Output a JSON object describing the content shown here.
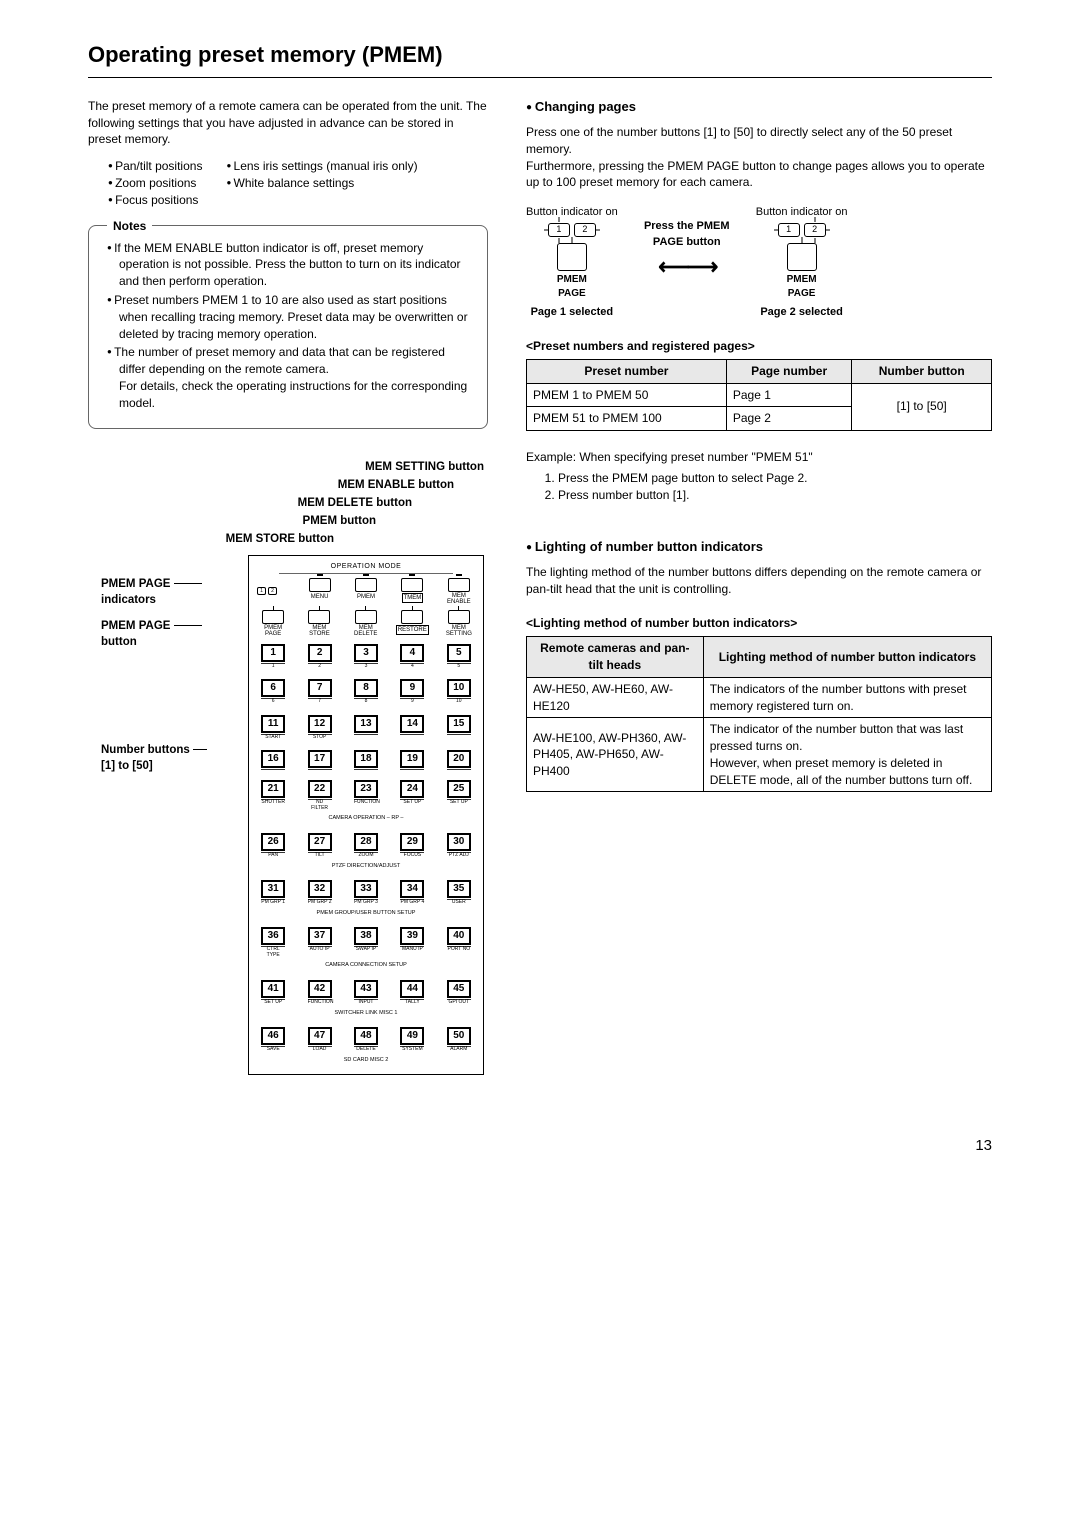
{
  "title": "Operating preset memory (PMEM)",
  "intro": "The preset memory of a remote camera can be operated from the unit. The following settings that you have adjusted in advance can be stored in preset memory.",
  "settings_col1": [
    "Pan/tilt positions",
    "Zoom positions",
    "Focus positions"
  ],
  "settings_col2": [
    "Lens iris settings (manual iris only)",
    "White balance settings"
  ],
  "notes_title": "Notes",
  "notes": [
    "If the MEM ENABLE button indicator is off, preset memory operation is not possible. Press the button to turn on its indicator and then perform operation.",
    "Preset numbers PMEM 1 to 10 are also used as start positions when recalling tracing memory. Preset data may be overwritten or deleted by tracing memory operation.",
    "The number of preset memory and data that can be registered differ depending on the remote camera.\nFor details, check the operating instructions for the corresponding model."
  ],
  "callouts": {
    "c1": "MEM SETTING button",
    "c2": "MEM ENABLE button",
    "c3": "MEM DELETE button",
    "c4": "PMEM button",
    "c5": "MEM STORE button"
  },
  "side_labels": {
    "s1_a": "PMEM PAGE",
    "s1_b": "indicators",
    "s2_a": "PMEM PAGE",
    "s2_b": "button",
    "s3_a": "Number buttons",
    "s3_b": "[1] to [50]"
  },
  "panel": {
    "op": "OPERATION MODE",
    "mode": [
      {
        "lbl": "MENU"
      },
      {
        "lbl": "PMEM"
      },
      {
        "lbl": "TMEM",
        "box": true
      },
      {
        "lbl": "MEM\nENABLE"
      }
    ],
    "ctrl": [
      {
        "lbl": "PMEM\nPAGE"
      },
      {
        "lbl": "MEM\nSTORE"
      },
      {
        "lbl": "MEM\nDELETE"
      },
      {
        "lbl": "RESTORE",
        "box": true
      },
      {
        "lbl": "MEM\nSETTING"
      }
    ],
    "ind": [
      "1",
      "2"
    ],
    "rows": [
      {
        "nums": [
          1,
          2,
          3,
          4,
          5
        ],
        "subs": [
          "1",
          "2",
          "3",
          "4",
          "5"
        ]
      },
      {
        "nums": [
          6,
          7,
          8,
          9,
          10
        ],
        "subs": [
          "6",
          "7",
          "8",
          "9",
          "10"
        ]
      },
      {
        "nums": [
          11,
          12,
          13,
          14,
          15
        ],
        "subs": [
          "START",
          "STOP",
          "",
          "",
          ""
        ]
      },
      {
        "nums": [
          16,
          17,
          18,
          19,
          20
        ],
        "subs": [
          "",
          "",
          "",
          "",
          ""
        ]
      },
      {
        "nums": [
          21,
          22,
          23,
          24,
          25
        ],
        "subs": [
          "SHUTTER",
          "ND FILTER",
          "FUNCTION",
          "SET UP",
          "SET UP"
        ],
        "group": "CAMERA OPERATION                    – RP –"
      },
      {
        "nums": [
          26,
          27,
          28,
          29,
          30
        ],
        "subs": [
          "PAN",
          "TILT",
          "ZOOM",
          "FOCUS",
          "PTZ ADJ"
        ],
        "group": "PTZF DIRECTION/ADJUST"
      },
      {
        "nums": [
          31,
          32,
          33,
          34,
          35
        ],
        "subs": [
          "PM GRP 1",
          "PM GRP 2",
          "PM GRP 3",
          "PM GRP 4",
          "USER"
        ],
        "group": "PMEM GROUP/USER BUTTON SETUP"
      },
      {
        "nums": [
          36,
          37,
          38,
          39,
          40
        ],
        "subs": [
          "CTRL TYPE",
          "AUTO IP",
          "SWAP IP",
          "MANU IP",
          "PORT NO"
        ],
        "group": "CAMERA CONNECTION SETUP"
      },
      {
        "nums": [
          41,
          42,
          43,
          44,
          45
        ],
        "subs": [
          "SET UP",
          "FUNCTION",
          "INPUT",
          "TALLY",
          "GPI OUT"
        ],
        "group": "SWITCHER LINK                    MISC 1"
      },
      {
        "nums": [
          46,
          47,
          48,
          49,
          50
        ],
        "subs": [
          "SAVE",
          "LOAD",
          "DELETE",
          "SYSTEM",
          "ALARM"
        ],
        "group": "SD CARD                              MISC 2"
      }
    ]
  },
  "right": {
    "h1": "Changing pages",
    "p1": "Press one of the number buttons [1] to [50] to directly select any of the 50 preset memory.\nFurthermore, pressing the PMEM PAGE button to change pages allows you to operate up to 100 preset memory for each camera.",
    "ind_on": "Button indicator on",
    "press": "Press the PMEM PAGE button",
    "pmem_page": "PMEM\nPAGE",
    "sel1": "Page 1 selected",
    "sel2": "Page 2 selected",
    "tbl1_title": "<Preset numbers and registered pages>",
    "tbl1": {
      "head": [
        "Preset number",
        "Page number",
        "Number button"
      ],
      "rows": [
        [
          "PMEM 1 to PMEM 50",
          "Page 1"
        ],
        [
          "PMEM 51 to PMEM 100",
          "Page 2"
        ]
      ],
      "merged": "[1] to [50]"
    },
    "example_lead": "Example: When specifying preset number \"PMEM 51\"",
    "example_steps": [
      "Press the PMEM page button to select Page 2.",
      "Press number button [1]."
    ],
    "h2": "Lighting of number button indicators",
    "p2": "The lighting method of the number buttons differs depending on the remote camera or pan-tilt head that the unit is controlling.",
    "tbl2_title": "<Lighting method of number button indicators>",
    "tbl2": {
      "head": [
        "Remote cameras and pan-tilt heads",
        "Lighting method of number button indicators"
      ],
      "rows": [
        [
          "AW-HE50, AW-HE60, AW-HE120",
          "The indicators of the number buttons with preset memory registered turn on."
        ],
        [
          "AW-HE100, AW-PH360, AW-PH405, AW-PH650, AW-PH400",
          "The indicator of the number button that was last pressed turns on.\nHowever, when preset memory is deleted in DELETE mode, all of the number buttons turn off."
        ]
      ]
    }
  },
  "page_number": "13"
}
